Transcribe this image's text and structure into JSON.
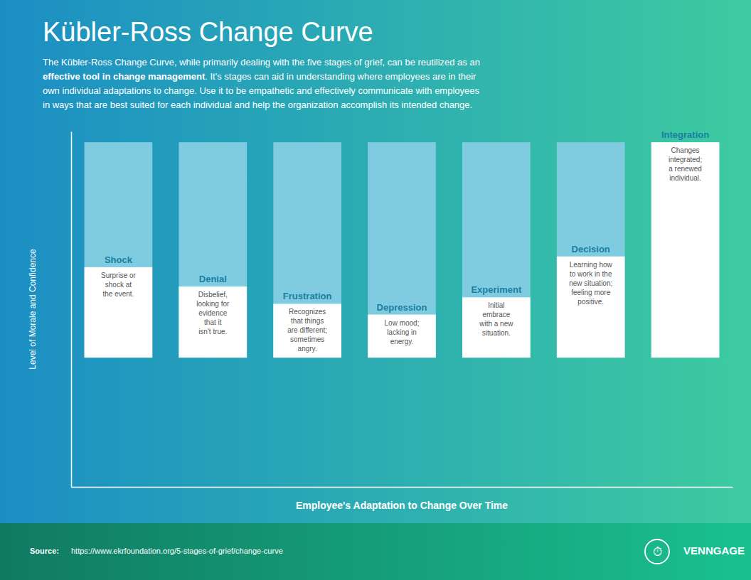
{
  "chart_data": {
    "type": "bar",
    "title": "Kübler-Ross Change Curve",
    "subtitle": [
      [
        {
          "text": "The Kübler-Ross Change Curve, while primarily dealing with the five stages of grief, can be reutilized as an"
        }
      ],
      [
        {
          "text": "effective tool in change management",
          "bold": true
        },
        {
          "text": ". It's stages can aid in understanding where employees are in their"
        }
      ],
      [
        {
          "text": "own individual adaptations to change. Use it to be empathetic and effectively communicate with employees"
        }
      ],
      [
        {
          "text": "in ways that are best suited for each individual and help the organization accomplish its intended change."
        }
      ]
    ],
    "xlabel": "Employee's Adaptation to Change Over Time",
    "ylabel": "Level of Morale and Confidence",
    "categories": [
      "Shock",
      "Denial",
      "Frustration",
      "Depression",
      "Experiment",
      "Decision",
      "Integration"
    ],
    "values": [
      0.42,
      0.33,
      0.25,
      0.2,
      0.28,
      0.47,
      1.0
    ],
    "total": 1.0,
    "color": "#ffffff",
    "total_color": "#7fcce0",
    "annotations": [
      "Surprise or\nshock at\nthe event.",
      "Disbelief,\nlooking for\nevidence\nthat it\nisn't true.",
      "Recognizes\nthat things\nare different;\nsometimes\nangry.",
      "Low mood;\nlacking in\nenergy.",
      "Initial\nembrace\nwith a new\nsituation.",
      "Learning how\nto work in the\nnew situation;\nfeeling more\npositive.",
      "Changes\nintegrated;\na renewed\nindividual."
    ],
    "ylim": [
      -0.6,
      1.05
    ],
    "yticks": [],
    "tick_labels": false,
    "grid": false,
    "source_label": "Source:",
    "source": "https://www.ekrfoundation.org/5-stages-of-grief/change-curve",
    "icon": "⏱",
    "brand": "VENNGAGE"
  }
}
